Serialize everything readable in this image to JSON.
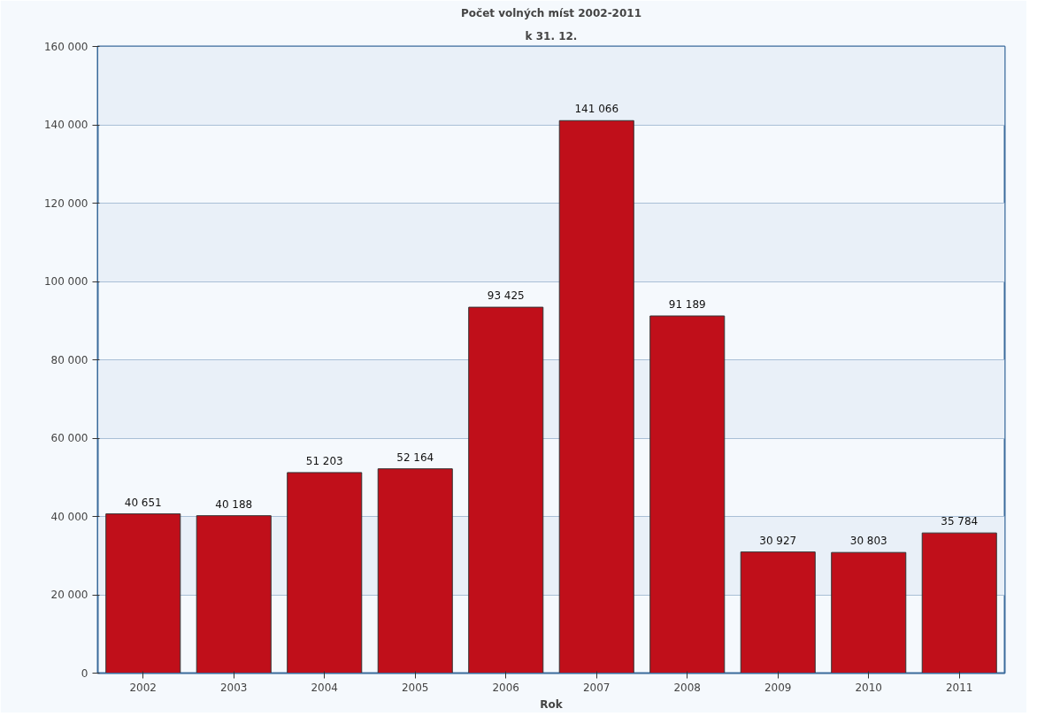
{
  "chart_data": {
    "type": "bar",
    "title": "Počet volných míst 2002-2011",
    "subtitle": "k 31. 12.",
    "xlabel": "Rok",
    "categories": [
      "2002",
      "2003",
      "2004",
      "2005",
      "2006",
      "2007",
      "2008",
      "2009",
      "2010",
      "2011"
    ],
    "values": [
      40651,
      40188,
      51203,
      52164,
      93425,
      141066,
      91189,
      30927,
      30803,
      35784
    ],
    "value_labels": [
      "40 651",
      "40 188",
      "51 203",
      "52 164",
      "93 425",
      "141 066",
      "91 189",
      "30 927",
      "30 803",
      "35 784"
    ],
    "color": "#c00f1a",
    "ylim": [
      0,
      160000
    ],
    "yticks": [
      {
        "value": 0,
        "label": "0"
      },
      {
        "value": 20000,
        "label": "20 000"
      },
      {
        "value": 40000,
        "label": "40 000"
      },
      {
        "value": 60000,
        "label": "60 000"
      },
      {
        "value": 80000,
        "label": "80 000"
      },
      {
        "value": 100000,
        "label": "100 000"
      },
      {
        "value": 120000,
        "label": "120 000"
      },
      {
        "value": 140000,
        "label": "140 000"
      },
      {
        "value": 160000,
        "label": "160 000"
      }
    ],
    "grid": "y"
  }
}
